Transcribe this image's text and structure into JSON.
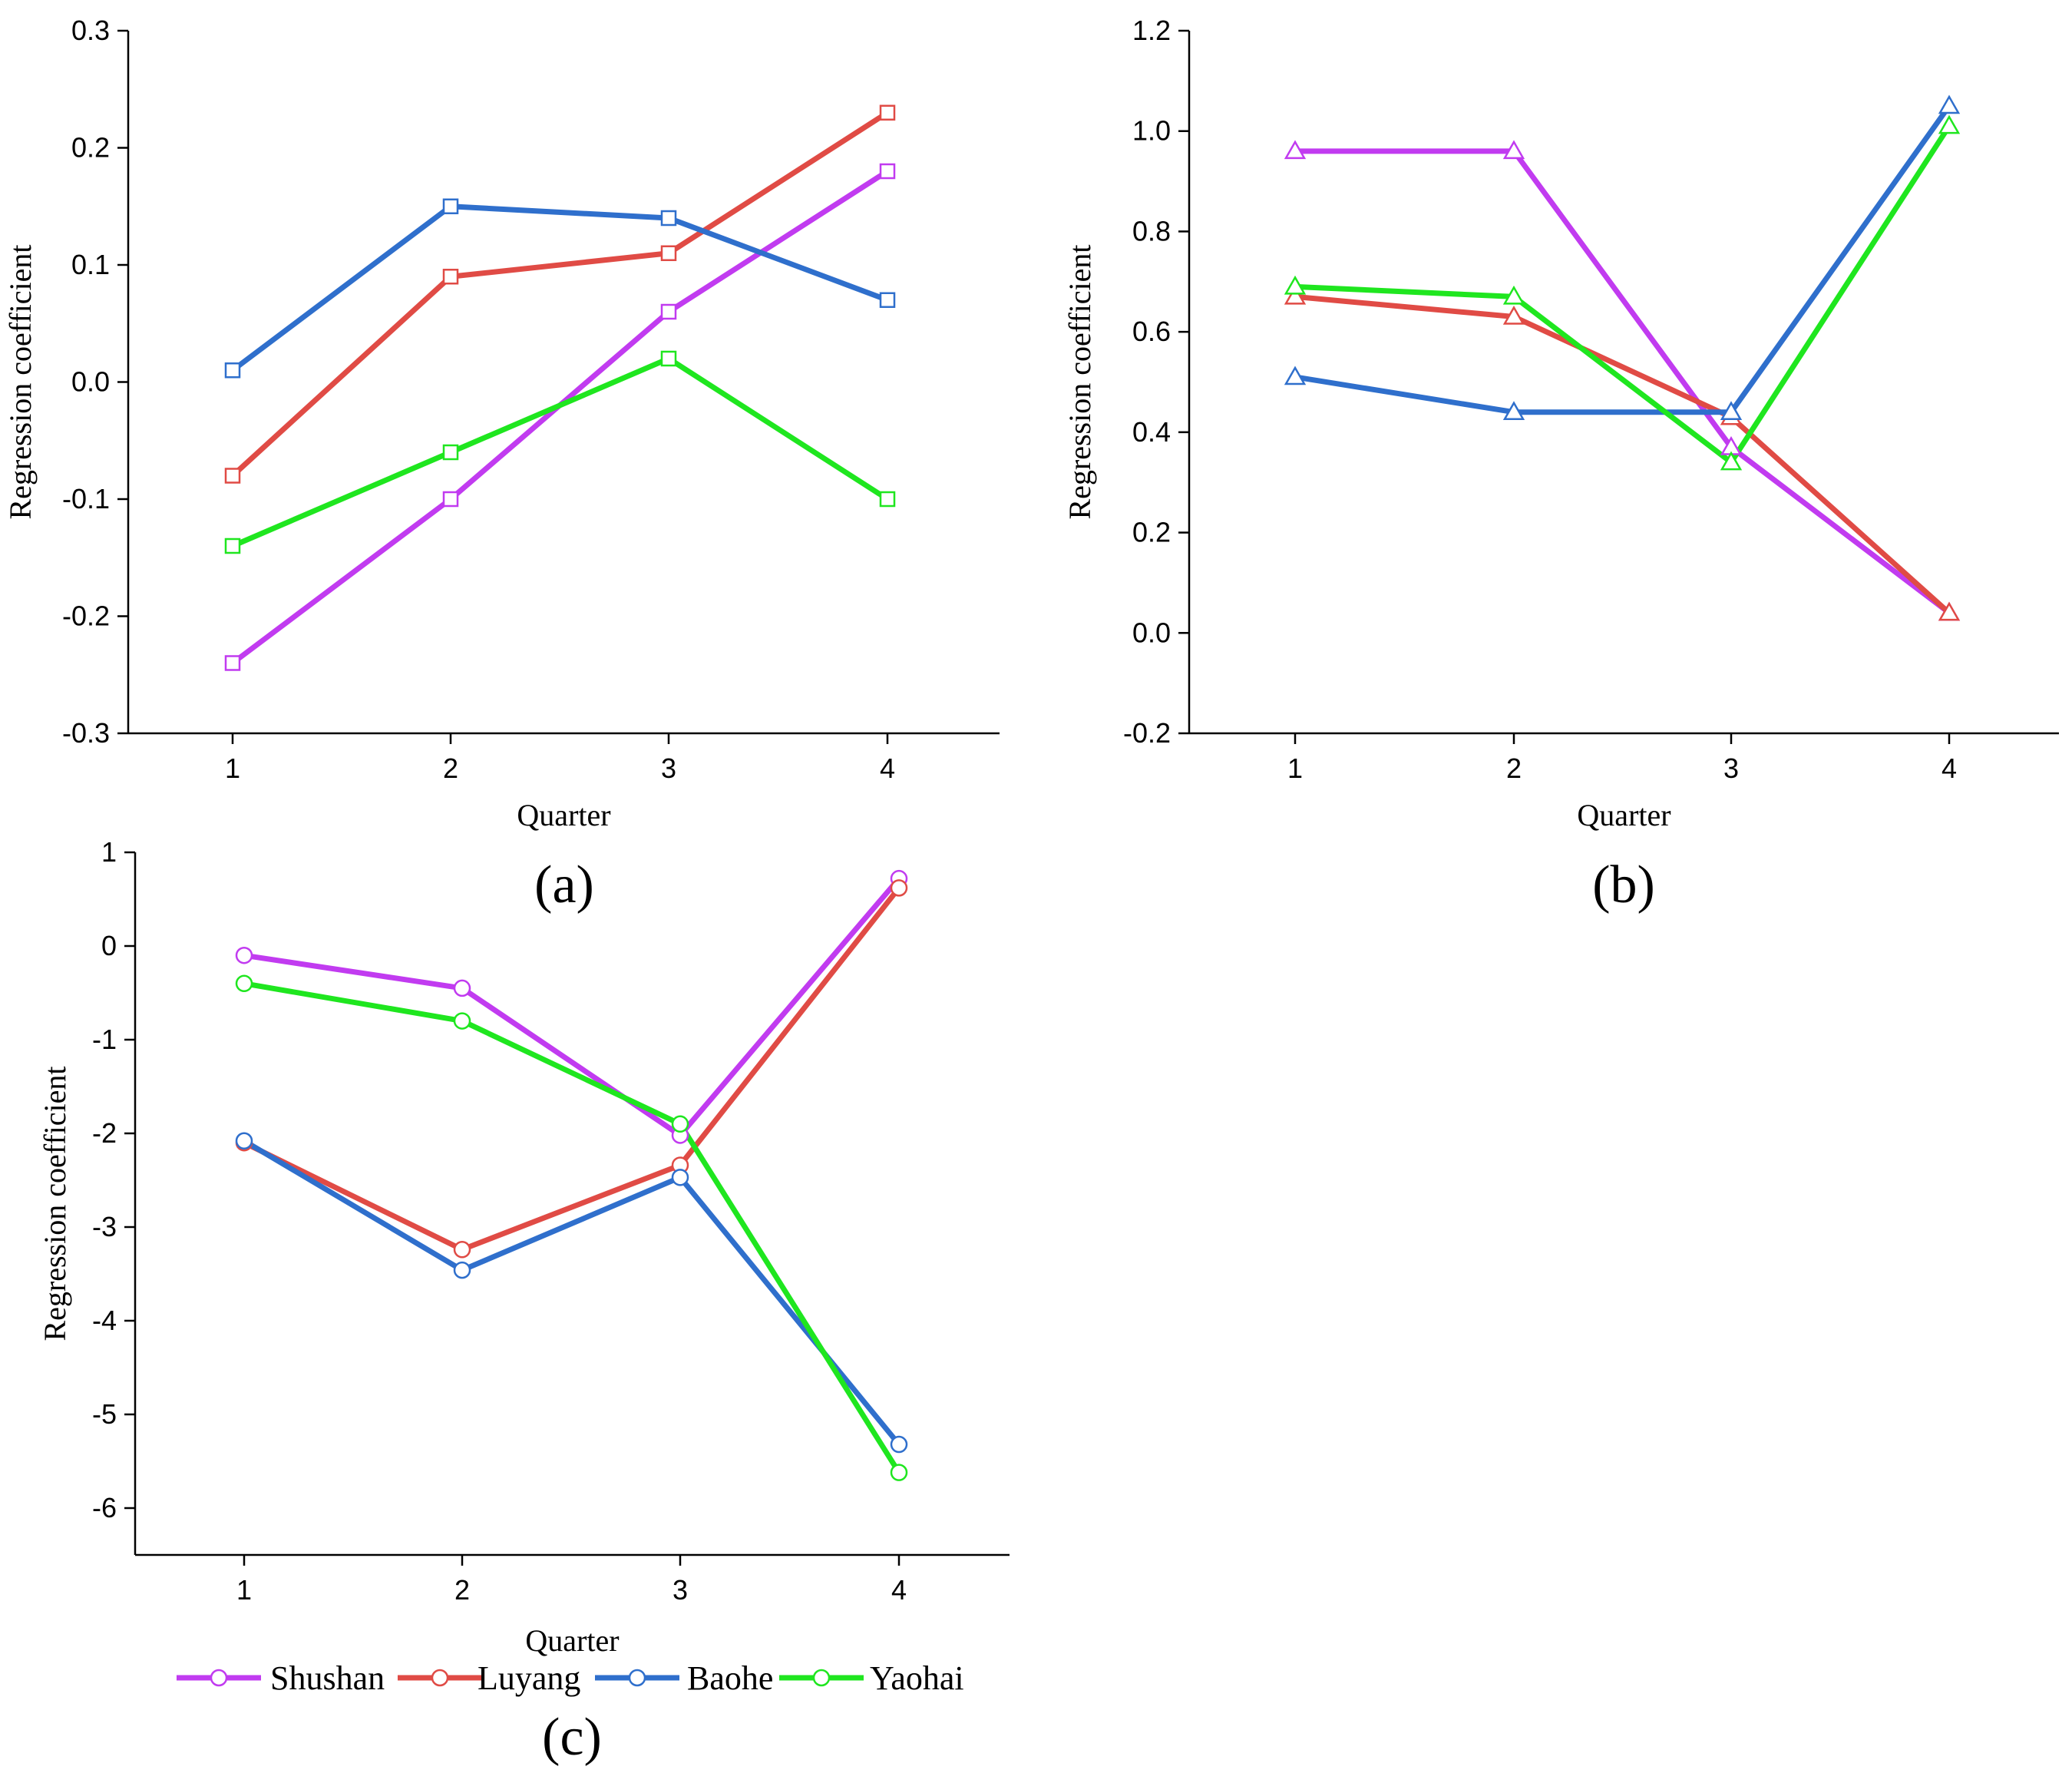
{
  "chart_data": [
    {
      "panel": "(a)",
      "type": "line",
      "marker": "square",
      "x": [
        1,
        2,
        3,
        4
      ],
      "xlabel": "Quarter",
      "ylabel": "Regression coefficient",
      "xticks": [
        "1",
        "2",
        "3",
        "4"
      ],
      "yticks": [
        "-0.3",
        "-0.2",
        "-0.1",
        "0.0",
        "0.1",
        "0.2",
        "0.3"
      ],
      "ylim": [
        -0.3,
        0.3
      ],
      "grid": false,
      "series": [
        {
          "name": "Shushan",
          "color": "#c13bf0",
          "values": [
            -0.24,
            -0.1,
            0.06,
            0.18
          ]
        },
        {
          "name": "Luyang",
          "color": "#e04b45",
          "values": [
            -0.08,
            0.09,
            0.11,
            0.23
          ]
        },
        {
          "name": "Baohe",
          "color": "#2f6fcc",
          "values": [
            0.01,
            0.15,
            0.14,
            0.07
          ]
        },
        {
          "name": "Yaohai",
          "color": "#1fe61f",
          "values": [
            -0.14,
            -0.06,
            0.02,
            -0.1
          ]
        }
      ]
    },
    {
      "panel": "(b)",
      "type": "line",
      "marker": "triangle",
      "x": [
        1,
        2,
        3,
        4
      ],
      "xlabel": "Quarter",
      "ylabel": "Regression coefficient",
      "xticks": [
        "1",
        "2",
        "3",
        "4"
      ],
      "yticks": [
        "-0.2",
        "0.0",
        "0.2",
        "0.4",
        "0.6",
        "0.8",
        "1.0",
        "1.2"
      ],
      "ylim": [
        -0.2,
        1.2
      ],
      "grid": false,
      "series": [
        {
          "name": "Shushan",
          "color": "#c13bf0",
          "values": [
            0.96,
            0.96,
            0.37,
            0.04
          ]
        },
        {
          "name": "Luyang",
          "color": "#e04b45",
          "values": [
            0.67,
            0.63,
            0.43,
            0.04
          ]
        },
        {
          "name": "Baohe",
          "color": "#2f6fcc",
          "values": [
            0.51,
            0.44,
            0.44,
            1.05
          ]
        },
        {
          "name": "Yaohai",
          "color": "#1fe61f",
          "values": [
            0.69,
            0.67,
            0.34,
            1.01
          ]
        }
      ]
    },
    {
      "panel": "(c)",
      "type": "line",
      "marker": "circle",
      "x": [
        1,
        2,
        3,
        4
      ],
      "xlabel": "Quarter",
      "ylabel": "Regression coefficient",
      "xticks": [
        "1",
        "2",
        "3",
        "4"
      ],
      "yticks": [
        "-6",
        "-5",
        "-4",
        "-3",
        "-2",
        "-1",
        "0",
        "1"
      ],
      "ylim": [
        -6.5,
        1
      ],
      "grid": false,
      "legend": "bottom-center",
      "series": [
        {
          "name": "Shushan",
          "color": "#c13bf0",
          "values": [
            -0.1,
            -0.45,
            -2.02,
            0.72
          ]
        },
        {
          "name": "Luyang",
          "color": "#e04b45",
          "values": [
            -2.1,
            -3.24,
            -2.34,
            0.62
          ]
        },
        {
          "name": "Baohe",
          "color": "#2f6fcc",
          "values": [
            -2.08,
            -3.46,
            -2.47,
            -5.32
          ]
        },
        {
          "name": "Yaohai",
          "color": "#1fe61f",
          "values": [
            -0.4,
            -0.8,
            -1.9,
            -5.62
          ]
        }
      ]
    }
  ]
}
